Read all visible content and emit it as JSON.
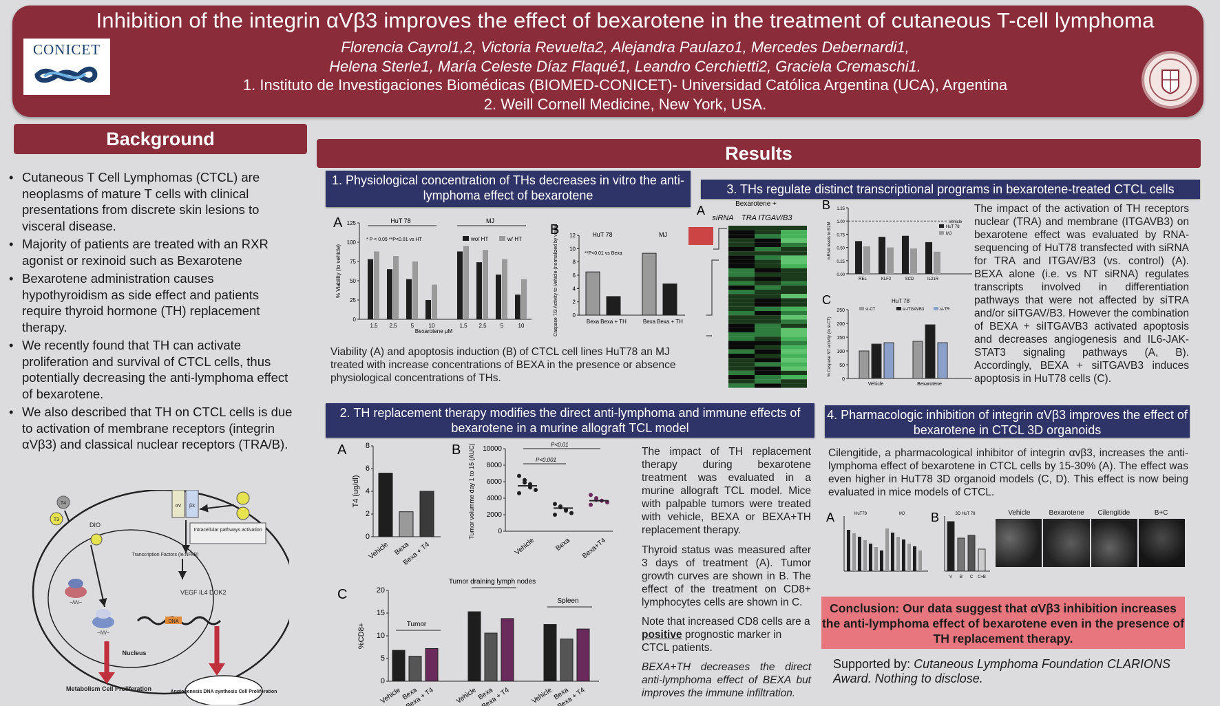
{
  "header": {
    "title": "Inhibition of the integrin αVβ3 improves the effect of bexarotene in the treatment of cutaneous T-cell lymphoma",
    "authors_line1": "Florencia Cayrol1,2, Victoria Revuelta2, Alejandra Paulazo1, Mercedes Debernardi1,",
    "authors_line2": "Helena Sterle1, María Celeste Díaz Flaqué1, Leandro Cerchietti2, Graciela Cremaschi1.",
    "affiliation1": "1. Instituto de Investigaciones Biomédicas (BIOMED-CONICET)- Universidad Católica Argentina (UCA), Argentina",
    "affiliation2": "2. Weill Cornell Medicine, New York, USA.",
    "logo_left_text": "CONICET"
  },
  "background": {
    "heading": "Background",
    "bullets": [
      "Cutaneous T Cell Lymphomas (CTCL) are neoplasms of mature T cells with clinical presentations from discrete skin lesions to visceral disease.",
      "Majority of patients are treated with an RXR agonist or rexinoid such as Bexarotene",
      "Bexarotene administration causes hypothyroidism as side effect and patients require thyroid hormone (TH) replacement therapy.",
      "We recently found that TH can activate proliferation and survival of CTCL cells, thus potentially decreasing the anti-lymphoma effect of bexarotene.",
      "We also described that TH on CTCL cells is due to activation of membrane receptors (integrin αVβ3) and classical nuclear receptors (TRA/B)."
    ],
    "diagram": {
      "t4": "T4",
      "t3": "T3",
      "dio": "DIO",
      "integrin_a": "αV",
      "integrin_b": "β3",
      "intracellular": "Intracellular pathways activation",
      "tf": "Transcription Factors (ie:NFkB)",
      "genes": "VEGF IL4 DOK2",
      "dna": "DNA",
      "nucleus": "Nucleus",
      "out_left": "Metabolism Cell Proliferation",
      "out_right": "Angiogenesis DNA synthesis Cell Proliferation"
    }
  },
  "results": {
    "heading": "Results",
    "panel1": {
      "title": "1. Physiological concentration of THs decreases in vitro the anti-lymphoma effect of bexarotene",
      "caption": "Viability (A) and apoptosis induction (B) of CTCL cell lines HuT78 an MJ treated with increase concentrations of BEXA in the presence or absence physiological concentrations of THs.",
      "chartA": {
        "label": "A",
        "ylabel": "% Viability (to vehicle)",
        "xlabel": "Bexarotene μM",
        "groups": [
          "HuT 78",
          "MJ"
        ],
        "note": "* P < 0.05 **P<0.01 vs HT",
        "legend": [
          "wo/ HT",
          "w/ HT"
        ],
        "categories": [
          "1,5",
          "2,5",
          "5",
          "10",
          "1,5",
          "2,5",
          "5",
          "10"
        ],
        "yticks": [
          "0",
          "25",
          "50",
          "75",
          "100",
          "125"
        ]
      },
      "chartB": {
        "label": "B",
        "ylabel": "Caspase 7/3 Activity to Vehicle (normalized by viable cells)",
        "groups": [
          "HuT 78",
          "MJ"
        ],
        "note": "**P<0.01 vs Bexa",
        "categories": [
          "Bexa",
          "Bexa + TH",
          "Bexa",
          "Bexa + TH"
        ],
        "yticks": [
          "0",
          "2",
          "4",
          "6",
          "8",
          "10",
          "12"
        ]
      }
    },
    "panel2": {
      "title": "2. TH replacement therapy modifies the direct anti-lymphoma and immune effects of bexarotene in a murine allograft TCL model",
      "text1": "The impact of TH replacement therapy during bexarotene treatment was evaluated in a murine allograft TCL model. Mice with palpable tumors were treated with vehicle, BEXA or BEXA+TH replacement therapy.",
      "text2": "Thyroid status was measured after 3 days of treatment (A). Tumor growth curves are shown in B. The effect of the treatment on CD8+ lymphocytes cells are shown in C.",
      "text3a": "Note that increased CD8 cells are a ",
      "text3b": "positive",
      "text3c": " prognostic marker in CTCL patients.",
      "text4": "BEXA+TH decreases the direct anti-lymphoma effect of BEXA but improves the immune infiltration.",
      "chartA": {
        "label": "A",
        "ylabel": "T4 (ug/dl)",
        "yticks": [
          "0",
          "2",
          "4",
          "6",
          "8"
        ],
        "categories": [
          "Vehicle",
          "Bexa",
          "Bexa + T4"
        ]
      },
      "chartB": {
        "label": "B",
        "ylabel": "Tumor volumme day 1 to 15 (AUC)",
        "yticks": [
          "0",
          "2000",
          "4000",
          "6000",
          "8000",
          "10000"
        ],
        "categories": [
          "Vehicle",
          "Bexa",
          "Bexa+T4"
        ],
        "p1": "P<0.01",
        "p2": "P<0.001"
      },
      "chartC": {
        "label": "C",
        "ylabel": "%CD8+",
        "yticks": [
          "0",
          "5",
          "10",
          "15",
          "20"
        ],
        "groups": [
          "Tumor",
          "Tumor draining lymph nodes",
          "Spleen"
        ],
        "categories": [
          "Vehicle",
          "Bexa",
          "Bexa + T4"
        ]
      }
    },
    "panel3": {
      "title": "3. THs regulate distinct transcriptional programs in bexarotene-treated CTCL cells",
      "text": "The impact of the activation of TH receptors nuclear (TRA) and membrane (ITGAVB3) on bexarotene effect was evaluated by RNA-sequencing of HuT78 transfected with siRNA for TRA and ITGAV/B3 (vs. control) (A). BEXA alone (i.e. vs NT siRNA) regulates transcripts involved in differentiation pathways that were not affected by siTRA and/or siITGAV/B3. However the combination of BEXA + siITGAVB3 activated apoptosis and decreases angiogenesis and IL6-JAK-STAT3 signaling pathways (A, B). Accordingly, BEXA + siITGAVB3 induces apoptosis in HuT78 cells (C).",
      "heatmap": {
        "label": "A",
        "group": "Bexarotene +",
        "cols": [
          "siRNA",
          "TRA",
          "ITGAV/B3"
        ]
      },
      "chartB": {
        "label": "B",
        "ylabel": "mRNA levels to B2M",
        "categories": [
          "REL",
          "KLF2",
          "SCD",
          "IL21R"
        ],
        "legend": [
          "HuT 78",
          "MJ"
        ],
        "refline": "Vehicle"
      },
      "chartC": {
        "label": "C",
        "title": "HuT 78",
        "ylabel": "% Caspase 3/7 activity (to si-CT)",
        "legend": [
          "si-CT",
          "si-ITGAVB3",
          "si-TR"
        ],
        "groups": [
          "Vehicle",
          "Bexarotene"
        ]
      }
    },
    "panel4": {
      "title": "4. Pharmacologic inhibition of integrin αVβ3 improves the effect of bexarotene in CTCL 3D organoids",
      "text": "Cilengitide, a pharmacological inhibitor of integrin αvβ3, increases the anti-lymphoma effect of bexarotene in CTCL cells by 15-30% (A). The effect was even higher in HuT78 3D organoid models (C, D). This effect is now being evaluated in mice models of CTCL.",
      "chartA": {
        "label": "A",
        "groups": [
          "HuT78",
          "MJ"
        ]
      },
      "chartB": {
        "label": "B",
        "title": "3D HuT 78",
        "categories": [
          "V",
          "B",
          "C",
          "C+B"
        ]
      },
      "images": [
        "Vehicle",
        "Bexarotene",
        "Cilengitide",
        "B+C"
      ]
    },
    "conclusion": "Conclusion: Our data suggest that αVβ3 inhibition increases the anti-lymphoma effect of bexarotene even in the presence of TH replacement therapy.",
    "support_a": "Supported by: ",
    "support_b": "Cutaneous Lymphoma Foundation CLARIONS Award. Nothing to disclose."
  },
  "chart_data": [
    {
      "type": "bar",
      "title": "",
      "xlabel": "Bexarotene μM",
      "ylabel": "% Viability (to vehicle)",
      "ylim": [
        0,
        125
      ],
      "categories": [
        "HuT78 1,5",
        "HuT78 2,5",
        "HuT78 5",
        "HuT78 10",
        "MJ 1,5",
        "MJ 2,5",
        "MJ 5",
        "MJ 10"
      ],
      "series": [
        {
          "name": "wo/ HT",
          "values": [
            78,
            65,
            52,
            25,
            88,
            74,
            58,
            32
          ]
        },
        {
          "name": "w/ HT",
          "values": [
            88,
            82,
            75,
            45,
            95,
            90,
            78,
            52
          ]
        }
      ]
    },
    {
      "type": "bar",
      "ylabel": "Caspase 7/3 Activity to Vehicle",
      "ylim": [
        0,
        12
      ],
      "categories": [
        "HuT78 Bexa",
        "HuT78 Bexa + TH",
        "MJ Bexa",
        "MJ Bexa + TH"
      ],
      "values": [
        6.5,
        2.8,
        9.3,
        4.7
      ]
    },
    {
      "type": "bar",
      "ylabel": "T4 (ug/dl)",
      "ylim": [
        0,
        8
      ],
      "categories": [
        "Vehicle",
        "Bexa",
        "Bexa + T4"
      ],
      "values": [
        5.6,
        2.2,
        4.0
      ]
    },
    {
      "type": "scatter",
      "ylabel": "Tumor volumme day 1 to 15 (AUC)",
      "ylim": [
        0,
        10000
      ],
      "categories": [
        "Vehicle",
        "Bexa",
        "Bexa+T4"
      ],
      "means": [
        5500,
        2800,
        3700
      ],
      "points": [
        [
          6700,
          6200,
          5700,
          5000,
          4600,
          5900,
          5300
        ],
        [
          3300,
          2900,
          2600,
          2200,
          2000,
          3000,
          2500
        ],
        [
          4400,
          4000,
          3700,
          3500,
          3200,
          3800
        ]
      ]
    },
    {
      "type": "bar",
      "ylabel": "%CD8+",
      "ylim": [
        0,
        20
      ],
      "categories": [
        "Tumor Vehicle",
        "Tumor Bexa",
        "Tumor Bexa + T4",
        "LN Vehicle",
        "LN Bexa",
        "LN Bexa + T4",
        "Spleen Vehicle",
        "Spleen Bexa",
        "Spleen Bexa + T4"
      ],
      "values": [
        6.8,
        5.5,
        7.2,
        15.3,
        10.6,
        13.8,
        12.5,
        9.3,
        11.5
      ]
    },
    {
      "type": "bar",
      "ylabel": "mRNA levels to B2M",
      "ylim": [
        0,
        1.25
      ],
      "categories": [
        "REL",
        "KLF2",
        "SCD",
        "IL21R"
      ],
      "series": [
        {
          "name": "HuT 78",
          "values": [
            0.62,
            0.7,
            0.72,
            0.6
          ]
        },
        {
          "name": "MJ",
          "values": [
            0.52,
            0.5,
            0.48,
            0.42
          ]
        }
      ]
    },
    {
      "type": "bar",
      "ylabel": "% Caspase 3/7 activity (to si-CT)",
      "ylim": [
        0,
        250
      ],
      "categories": [
        "Vehicle",
        "Bexarotene"
      ],
      "series": [
        {
          "name": "si-CT",
          "values": [
            100,
            135
          ]
        },
        {
          "name": "si-ITGAVB3",
          "values": [
            125,
            195
          ]
        },
        {
          "name": "si-TR",
          "values": [
            130,
            130
          ]
        }
      ]
    }
  ]
}
